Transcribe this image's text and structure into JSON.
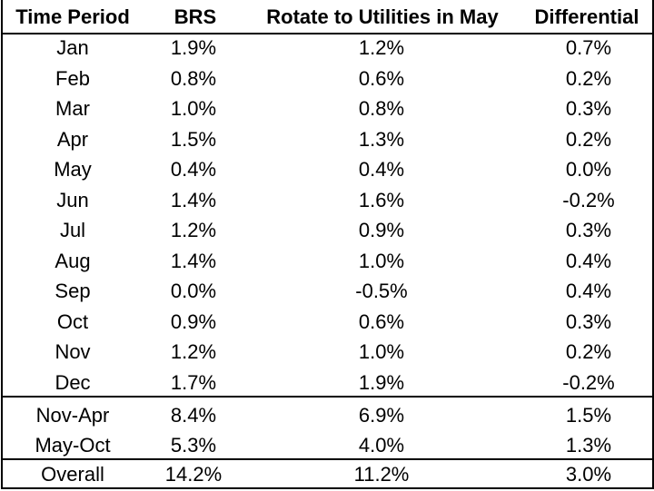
{
  "table": {
    "header": [
      "Time Period",
      "BRS",
      "Rotate to Utilities in May",
      "Differential"
    ],
    "rows": [
      [
        "Jan",
        "1.9%",
        "1.2%",
        "0.7%"
      ],
      [
        "Feb",
        "0.8%",
        "0.6%",
        "0.2%"
      ],
      [
        "Mar",
        "1.0%",
        "0.8%",
        "0.3%"
      ],
      [
        "Apr",
        "1.5%",
        "1.3%",
        "0.2%"
      ],
      [
        "May",
        "0.4%",
        "0.4%",
        "0.0%"
      ],
      [
        "Jun",
        "1.4%",
        "1.6%",
        "-0.2%"
      ],
      [
        "Jul",
        "1.2%",
        "0.9%",
        "0.3%"
      ],
      [
        "Aug",
        "1.4%",
        "1.0%",
        "0.4%"
      ],
      [
        "Sep",
        "0.0%",
        "-0.5%",
        "0.4%"
      ],
      [
        "Oct",
        "0.9%",
        "0.6%",
        "0.3%"
      ],
      [
        "Nov",
        "1.2%",
        "1.0%",
        "0.2%"
      ],
      [
        "Dec",
        "1.7%",
        "1.9%",
        "-0.2%"
      ],
      [
        "Nov-Apr",
        "8.4%",
        "6.9%",
        "1.5%"
      ],
      [
        "May-Oct",
        "5.3%",
        "4.0%",
        "1.3%"
      ],
      [
        "Overall",
        "14.2%",
        "11.2%",
        "3.0%"
      ]
    ]
  }
}
